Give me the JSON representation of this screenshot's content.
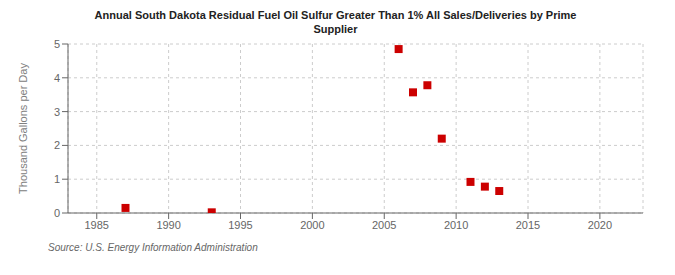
{
  "chart_data": {
    "type": "scatter",
    "title": "Annual South Dakota Residual Fuel Oil Sulfur Greater Than 1% All Sales/Deliveries by Prime\nSupplier",
    "y_label": "Thousand Gallons per Day",
    "annotations": [
      "Source: U.S. Energy Information Administration"
    ],
    "x": [
      1987,
      1993,
      2006,
      2007,
      2008,
      2009,
      2011,
      2012,
      2013
    ],
    "values": [
      0.15,
      0.02,
      4.85,
      3.57,
      3.78,
      2.2,
      0.92,
      0.78,
      0.65
    ],
    "color": "#cc0000",
    "marker": "square",
    "xlim": [
      1983,
      2023
    ],
    "ylim": [
      0,
      5
    ],
    "xticks": [
      1985,
      1990,
      1995,
      2000,
      2005,
      2010,
      2015,
      2020
    ],
    "yticks": [
      0,
      1,
      2,
      3,
      4,
      5
    ],
    "grid": true
  }
}
